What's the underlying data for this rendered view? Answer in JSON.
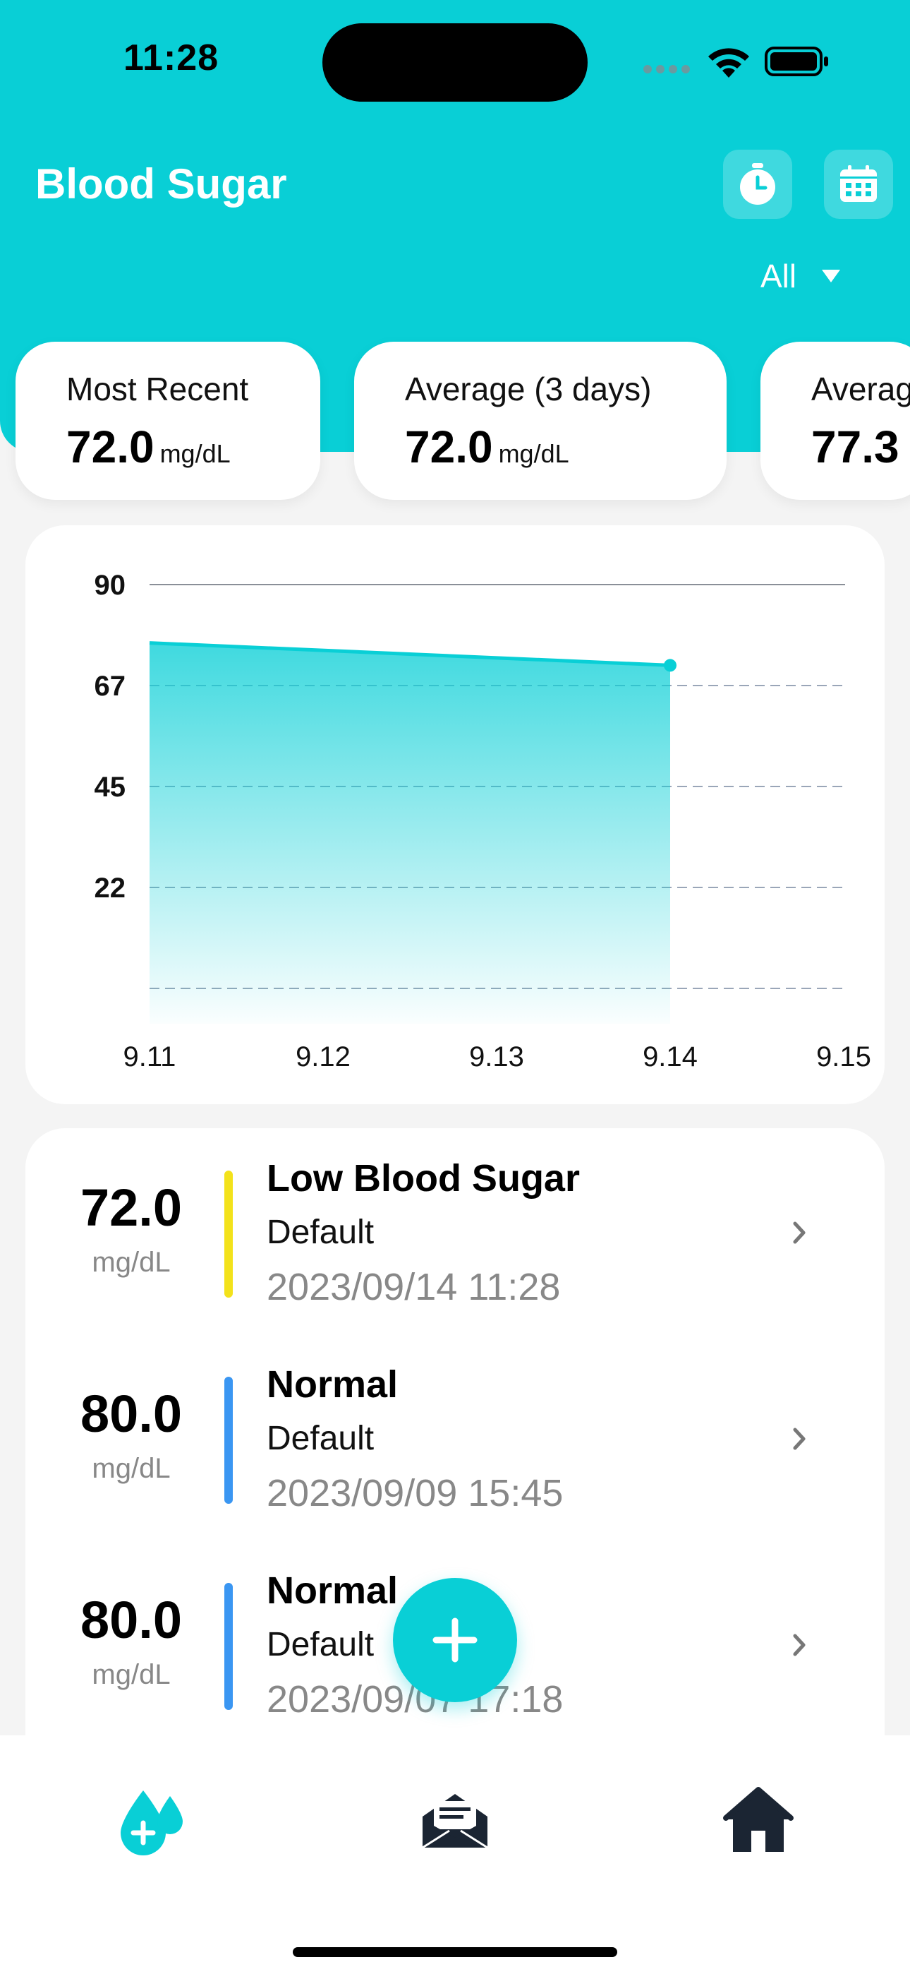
{
  "status_bar": {
    "time": "11:28"
  },
  "header": {
    "title": "Blood Sugar",
    "filter_label": "All",
    "accent_color": "#09cfd6"
  },
  "summary": [
    {
      "label": "Most Recent",
      "value": "72.0",
      "unit": "mg/dL"
    },
    {
      "label": "Average (3 days)",
      "value": "72.0",
      "unit": "mg/dL"
    },
    {
      "label": "Averag",
      "value": "77.3",
      "unit": ""
    }
  ],
  "chart_data": {
    "type": "area",
    "x": [
      "9.11",
      "9.14"
    ],
    "y": [
      77,
      72
    ],
    "x_ticks": [
      "9.11",
      "9.12",
      "9.13",
      "9.14",
      "9.15"
    ],
    "y_ticks": [
      "90",
      "67",
      "45",
      "22"
    ],
    "ylim": [
      0,
      90
    ],
    "grid": true,
    "color": "#09cfd6"
  },
  "entries": [
    {
      "value": "72.0",
      "unit": "mg/dL",
      "status": "Low Blood Sugar",
      "profile": "Default",
      "time": "2023/09/14 11:28",
      "color": "#f3e21b"
    },
    {
      "value": "80.0",
      "unit": "mg/dL",
      "status": "Normal",
      "profile": "Default",
      "time": "2023/09/09 15:45",
      "color": "#3a96f2"
    },
    {
      "value": "80.0",
      "unit": "mg/dL",
      "status": "Normal",
      "profile": "Default",
      "time": "2023/09/07 17:18",
      "color": "#3a96f2"
    }
  ],
  "tabs": [
    {
      "icon": "blood-drop-icon",
      "active": true
    },
    {
      "icon": "mail-icon",
      "active": false
    },
    {
      "icon": "home-icon",
      "active": false
    }
  ]
}
